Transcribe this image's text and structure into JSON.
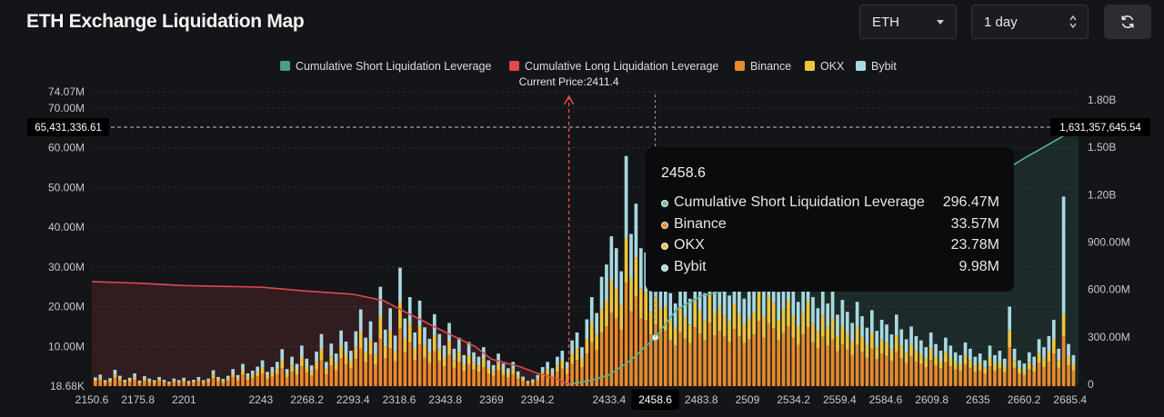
{
  "header": {
    "title": "ETH Exchange Liquidation Map",
    "symbol_select": "ETH",
    "range_select": "1 day",
    "refresh_icon": "refresh-icon"
  },
  "colors": {
    "short_cum": "#4a9e84",
    "long_cum": "#e0484f",
    "binance": "#e9892b",
    "okx": "#f0c33b",
    "bybit": "#a9d9e0"
  },
  "tooltip": {
    "title": "2458.6",
    "rows": [
      {
        "name": "Cumulative Short Liquidation Leverage",
        "value": "296.47M",
        "color": "#6fc3a8"
      },
      {
        "name": "Binance",
        "value": "33.57M",
        "color": "#e9892b"
      },
      {
        "name": "OKX",
        "value": "23.78M",
        "color": "#f0c33b"
      },
      {
        "name": "Bybit",
        "value": "9.98M",
        "color": "#a9d9e0"
      }
    ]
  },
  "chart_data": {
    "type": "bar",
    "title": "",
    "legend": [
      "Cumulative Short Liquidation Leverage",
      "Cumulative Long Liquidation Leverage",
      "Binance",
      "OKX",
      "Bybit"
    ],
    "legend_position": "top-center",
    "current_price_label": "Current Price:2411.4",
    "current_price": 2411.4,
    "crosshair_left_label": "65,431,336.61",
    "crosshair_right_label": "1,631,357,645.54",
    "crosshair_x_label": "2458.6",
    "xlim": [
      2150.6,
      2690
    ],
    "x_ticks": [
      "2150.6",
      "2175.8",
      "2201",
      "2243",
      "2268.2",
      "2293.4",
      "2318.6",
      "2343.8",
      "2369",
      "2394.2",
      "2433.4",
      "2458.6",
      "2483.8",
      "2509",
      "2534.2",
      "2559.4",
      "2584.6",
      "2609.8",
      "2635",
      "2660.2",
      "2685.4"
    ],
    "x_tick_values": [
      2150.6,
      2175.8,
      2201,
      2243,
      2268.2,
      2293.4,
      2318.6,
      2343.8,
      2369,
      2394.2,
      2433.4,
      2458.6,
      2483.8,
      2509,
      2534.2,
      2559.4,
      2584.6,
      2609.8,
      2635,
      2660.2,
      2685.4
    ],
    "y_left": {
      "ticks": [
        "18.68K",
        "10.00M",
        "20.00M",
        "30.00M",
        "40.00M",
        "50.00M",
        "60.00M",
        "70.00M",
        "74.07M"
      ],
      "values": [
        0.01868,
        10,
        20,
        30,
        40,
        50,
        60,
        70,
        74.07
      ],
      "ylim": [
        0,
        74.07
      ],
      "unit": "M"
    },
    "y_right": {
      "ticks": [
        "0",
        "300.00M",
        "600.00M",
        "900.00M",
        "1.20B",
        "1.50B",
        "1.80B"
      ],
      "values": [
        0,
        300,
        600,
        900,
        1200,
        1500,
        1800
      ],
      "ylim": [
        0,
        1800
      ],
      "unit": "M"
    },
    "long_cumulative": {
      "name": "Cumulative Long Liquidation Leverage",
      "x": [
        2150.6,
        2175.8,
        2201,
        2243,
        2268.2,
        2293.4,
        2310,
        2325,
        2343.8,
        2360,
        2369,
        2385,
        2394.2,
        2405,
        2411.4
      ],
      "y": [
        650,
        640,
        625,
        615,
        590,
        570,
        530,
        440,
        330,
        240,
        160,
        110,
        70,
        35,
        0
      ]
    },
    "short_cumulative": {
      "name": "Cumulative Short Liquidation Leverage",
      "x": [
        2411.4,
        2425,
        2433.4,
        2445,
        2458.6,
        2470,
        2483.8,
        2509,
        2534.2,
        2559.4,
        2584.6,
        2609.8,
        2635,
        2660.2,
        2680,
        2690
      ],
      "y": [
        0,
        30,
        60,
        150,
        296.47,
        470,
        560,
        620,
        700,
        800,
        950,
        1100,
        1250,
        1430,
        1560,
        1631.36
      ]
    },
    "bars_note_x_step": 2.1,
    "series": [
      {
        "name": "Binance",
        "values": [
          1.2,
          1.5,
          0.8,
          1.0,
          2.1,
          1.4,
          0.9,
          1.1,
          1.6,
          0.7,
          1.3,
          1.0,
          0.8,
          1.2,
          0.9,
          0.6,
          1.0,
          0.8,
          1.1,
          0.7,
          0.9,
          1.2,
          0.8,
          1.0,
          2.0,
          1.2,
          0.9,
          1.3,
          2.2,
          1.4,
          2.8,
          1.6,
          2.0,
          2.5,
          3.2,
          1.8,
          2.4,
          3.0,
          4.5,
          2.2,
          3.6,
          2.8,
          5.0,
          3.4,
          2.6,
          4.2,
          6.5,
          3.0,
          5.2,
          4.0,
          7.0,
          5.6,
          4.4,
          6.8,
          9.5,
          6.0,
          8.0,
          5.4,
          12.0,
          7.0,
          9.6,
          6.2,
          14.5,
          8.4,
          11.0,
          6.6,
          10.5,
          7.2,
          5.8,
          8.8,
          6.4,
          5.0,
          7.8,
          4.6,
          6.0,
          3.8,
          5.4,
          4.2,
          3.6,
          4.8,
          3.2,
          2.6,
          4.0,
          2.8,
          2.2,
          3.0,
          1.8,
          1.2,
          0.6,
          0.8,
          1.4,
          2.4,
          3.0,
          2.2,
          3.6,
          4.4,
          3.0,
          5.6,
          6.6,
          4.8,
          8.2,
          11.0,
          9.0,
          13.5,
          15.0,
          18.5,
          17.0,
          14.2,
          26.0,
          18.8,
          22.5,
          17.0,
          16.5,
          13.0,
          15.5,
          13.5,
          14.0,
          11.5,
          10.2,
          13.6,
          12.0,
          10.8,
          14.8,
          13.2,
          11.5,
          16.0,
          12.8,
          13.8,
          12.4,
          11.2,
          14.4,
          12.6,
          10.8,
          11.8,
          13.0,
          16.4,
          12.2,
          15.8,
          14.6,
          11.6,
          13.4,
          15.0,
          12.2,
          10.4,
          13.0,
          14.8,
          11.0,
          9.6,
          12.4,
          10.2,
          11.8,
          8.8,
          10.6,
          9.2,
          7.8,
          10.4,
          8.6,
          7.2,
          9.4,
          6.8,
          8.2,
          7.6,
          6.4,
          8.8,
          7.0,
          5.8,
          7.4,
          6.2,
          5.6,
          4.8,
          6.6,
          5.2,
          4.4,
          6.0,
          5.0,
          4.2,
          3.8,
          5.4,
          4.6,
          3.6,
          4.0,
          3.2,
          5.0,
          3.8,
          4.4,
          3.4,
          9.8,
          4.6,
          3.2,
          2.8,
          4.2,
          3.6,
          5.8,
          4.8,
          6.2,
          8.2,
          4.6,
          12.6,
          5.2,
          3.8
        ]
      },
      {
        "name": "OKX",
        "values": [
          0.4,
          0.6,
          0.3,
          0.5,
          0.8,
          0.5,
          0.3,
          0.4,
          0.7,
          0.3,
          0.5,
          0.4,
          0.3,
          0.5,
          0.3,
          0.2,
          0.4,
          0.3,
          0.4,
          0.3,
          0.3,
          0.5,
          0.3,
          0.4,
          0.9,
          0.5,
          0.4,
          0.6,
          0.9,
          0.6,
          1.2,
          0.7,
          0.8,
          1.0,
          1.4,
          0.8,
          1.0,
          1.3,
          2.0,
          0.9,
          1.6,
          1.2,
          2.2,
          1.5,
          1.1,
          1.9,
          2.8,
          1.3,
          2.3,
          1.8,
          3.0,
          2.4,
          1.9,
          3.0,
          4.2,
          2.6,
          3.5,
          2.4,
          5.6,
          3.0,
          4.2,
          2.7,
          6.5,
          3.6,
          4.8,
          2.9,
          4.6,
          3.2,
          2.6,
          3.9,
          2.8,
          2.2,
          3.4,
          2.0,
          2.6,
          1.7,
          2.4,
          1.8,
          1.6,
          2.1,
          1.4,
          1.1,
          1.8,
          1.2,
          1.0,
          1.3,
          0.8,
          0.5,
          0.3,
          0.4,
          0.6,
          1.0,
          1.3,
          1.0,
          1.6,
          1.9,
          1.3,
          2.5,
          2.9,
          2.1,
          3.6,
          4.8,
          4.0,
          5.9,
          6.6,
          8.1,
          7.5,
          6.2,
          11.4,
          8.2,
          9.9,
          7.5,
          7.2,
          5.7,
          6.8,
          5.9,
          6.1,
          5.0,
          4.5,
          6.0,
          5.3,
          4.7,
          6.5,
          5.8,
          5.0,
          7.0,
          5.6,
          6.1,
          5.4,
          4.9,
          6.3,
          5.5,
          4.7,
          5.2,
          5.7,
          7.2,
          5.4,
          6.9,
          6.4,
          5.1,
          5.9,
          6.6,
          5.4,
          4.6,
          5.7,
          6.5,
          4.8,
          4.2,
          5.4,
          4.5,
          5.2,
          3.9,
          4.7,
          4.0,
          3.4,
          4.6,
          3.8,
          3.2,
          4.1,
          3.0,
          3.6,
          3.3,
          2.8,
          3.9,
          3.1,
          2.5,
          3.2,
          2.7,
          2.5,
          2.1,
          2.9,
          2.3,
          1.9,
          2.6,
          2.2,
          1.8,
          1.7,
          2.4,
          2.0,
          1.6,
          1.8,
          1.4,
          2.2,
          1.7,
          1.9,
          1.5,
          4.3,
          2.0,
          1.4,
          1.2,
          1.8,
          1.6,
          2.5,
          2.1,
          2.7,
          3.6,
          2.0,
          5.5,
          2.3,
          1.7
        ]
      },
      {
        "name": "Bybit",
        "values": [
          0.6,
          0.8,
          0.4,
          0.5,
          1.2,
          0.7,
          0.4,
          0.6,
          0.9,
          0.4,
          0.7,
          0.5,
          0.4,
          0.6,
          0.4,
          0.3,
          0.5,
          0.4,
          0.6,
          0.3,
          0.4,
          0.6,
          0.4,
          0.5,
          1.1,
          0.6,
          0.5,
          0.7,
          1.2,
          0.8,
          1.6,
          0.9,
          1.1,
          1.4,
          1.9,
          1.0,
          1.4,
          1.8,
          2.8,
          1.2,
          2.2,
          1.6,
          3.0,
          2.0,
          1.5,
          2.6,
          3.8,
          1.8,
          3.2,
          2.4,
          4.0,
          3.2,
          2.6,
          4.0,
          5.6,
          3.6,
          4.8,
          3.2,
          7.4,
          4.2,
          5.8,
          3.8,
          8.8,
          5.0,
          6.6,
          4.0,
          6.4,
          4.4,
          3.5,
          5.4,
          3.9,
          3.0,
          4.7,
          2.8,
          3.6,
          2.3,
          3.3,
          2.5,
          2.2,
          2.9,
          1.9,
          1.6,
          2.4,
          1.7,
          1.3,
          1.8,
          1.1,
          0.7,
          0.4,
          0.5,
          0.8,
          1.4,
          1.8,
          1.3,
          2.2,
          2.6,
          1.8,
          3.4,
          4.0,
          2.9,
          5.0,
          6.6,
          5.4,
          8.1,
          9.0,
          11.1,
          10.2,
          8.5,
          20.5,
          11.3,
          13.5,
          10.2,
          9.9,
          7.8,
          9.3,
          8.1,
          8.4,
          6.9,
          6.1,
          8.2,
          7.2,
          6.5,
          8.9,
          7.9,
          6.9,
          9.6,
          7.7,
          8.3,
          7.4,
          6.7,
          8.6,
          7.6,
          6.5,
          7.1,
          7.8,
          9.8,
          7.3,
          9.5,
          8.8,
          7.0,
          8.0,
          9.0,
          7.3,
          6.2,
          7.8,
          8.9,
          6.6,
          5.8,
          7.4,
          6.1,
          7.1,
          5.3,
          6.4,
          5.5,
          4.7,
          6.2,
          5.2,
          4.3,
          5.6,
          4.1,
          4.9,
          4.6,
          3.8,
          5.3,
          4.2,
          3.5,
          4.4,
          3.7,
          3.4,
          2.9,
          4.0,
          3.1,
          2.6,
          3.6,
          3.0,
          2.5,
          2.3,
          3.2,
          2.8,
          2.2,
          2.4,
          1.9,
          3.0,
          2.3,
          2.6,
          2.0,
          5.9,
          2.8,
          1.9,
          1.7,
          2.5,
          2.2,
          3.5,
          2.9,
          3.7,
          4.9,
          2.8,
          29.6,
          3.1,
          2.3
        ]
      }
    ]
  }
}
